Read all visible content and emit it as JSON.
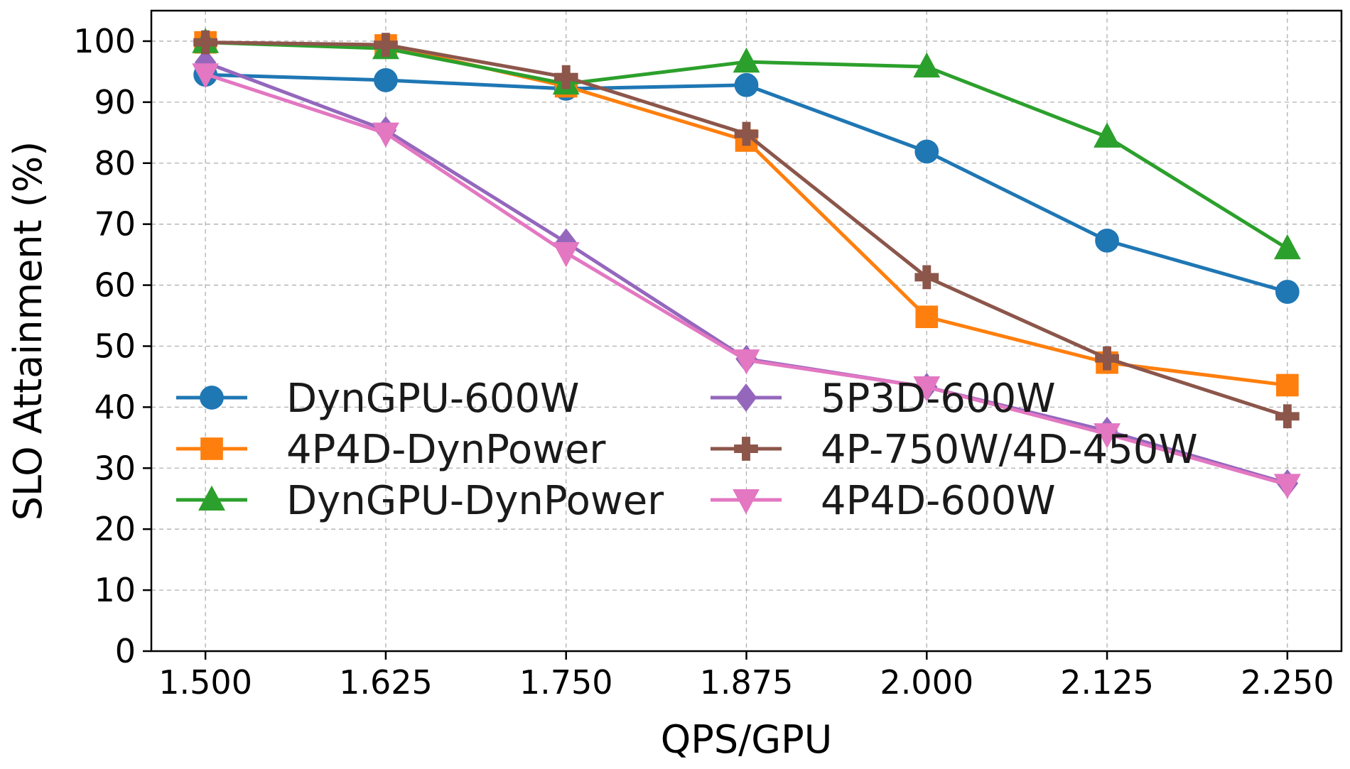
{
  "chart_data": {
    "type": "line",
    "title": "",
    "xlabel": "QPS/GPU",
    "ylabel": "SLO Attainment (%)",
    "x": [
      1.5,
      1.625,
      1.75,
      1.875,
      2.0,
      2.125,
      2.25
    ],
    "x_tick_labels": [
      "1.500",
      "1.625",
      "1.750",
      "1.875",
      "2.000",
      "2.125",
      "2.250"
    ],
    "y_ticks": [
      0,
      10,
      20,
      30,
      40,
      50,
      60,
      70,
      80,
      90,
      100
    ],
    "y_tick_labels": [
      "0",
      "10",
      "20",
      "30",
      "40",
      "50",
      "60",
      "70",
      "80",
      "90",
      "100"
    ],
    "xlim": [
      1.4625,
      2.2875
    ],
    "ylim": [
      0,
      105
    ],
    "grid": true,
    "legend_position": "lower-left",
    "series": [
      {
        "name": "DynGPU-600W",
        "color": "#1f77b4",
        "marker": "circle",
        "values": [
          94.5,
          93.6,
          92.2,
          92.8,
          81.9,
          67.3,
          58.9
        ]
      },
      {
        "name": "4P4D-DynPower",
        "color": "#ff7f0e",
        "marker": "square",
        "values": [
          99.8,
          99.3,
          92.6,
          83.7,
          54.8,
          47.3,
          43.6
        ]
      },
      {
        "name": "DynGPU-DynPower",
        "color": "#2ca02c",
        "marker": "triangle-up",
        "values": [
          99.8,
          98.8,
          93.0,
          96.6,
          95.8,
          84.3,
          66.0
        ]
      },
      {
        "name": "5P3D-600W",
        "color": "#9467bd",
        "marker": "diamond",
        "values": [
          96.5,
          85.4,
          67.0,
          47.9,
          43.3,
          36.1,
          27.5
        ]
      },
      {
        "name": "4P-750W/4D-450W",
        "color": "#8c564b",
        "marker": "plus",
        "values": [
          99.8,
          99.4,
          94.1,
          84.8,
          61.3,
          48.0,
          38.5
        ]
      },
      {
        "name": "4P4D-600W",
        "color": "#e377c2",
        "marker": "triangle-down",
        "values": [
          94.6,
          84.9,
          65.3,
          47.7,
          43.3,
          35.6,
          27.3
        ]
      }
    ]
  }
}
